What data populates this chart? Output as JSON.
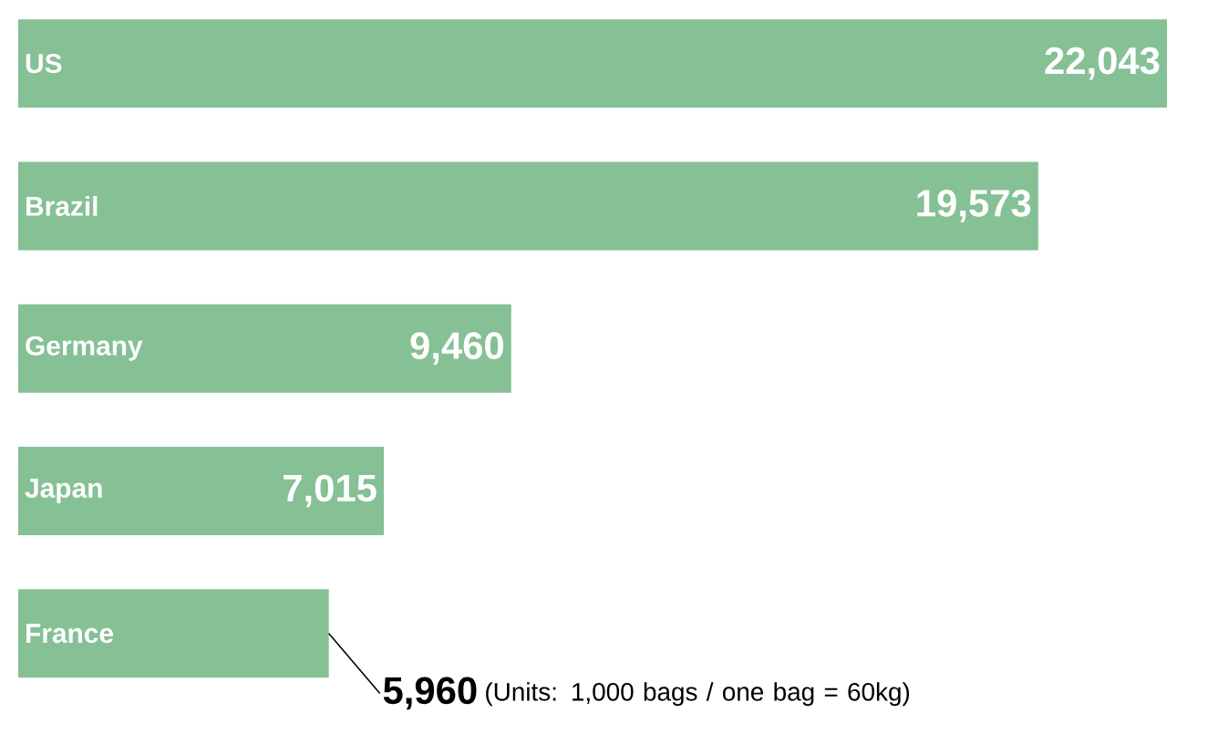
{
  "chart_data": {
    "type": "bar",
    "orientation": "horizontal",
    "categories": [
      "US",
      "Brazil",
      "Germany",
      "Japan",
      "France"
    ],
    "values": [
      22043,
      19573,
      9460,
      7015,
      5960
    ],
    "color": "#86c095",
    "value_labels": [
      "22,043",
      "19,573",
      "9,460",
      "7,015",
      "5,960"
    ],
    "annotations": [
      "(Units: 1,000 bags / one bag = 60kg)"
    ]
  }
}
